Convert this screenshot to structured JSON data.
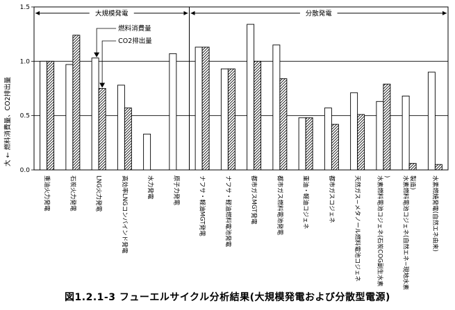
{
  "caption": "図1.2.1-3 フューエルサイクル分析結果(大規模発電および分散型電源)",
  "chart_data": {
    "type": "bar",
    "ylabel": "大 ← 燃料消費量、CO2排出量",
    "ylim": [
      0,
      1.5
    ],
    "yticks": [
      "0.0",
      "0.5",
      "1.0",
      "1.5"
    ],
    "grid": true,
    "sections": [
      {
        "label": "大規模発電",
        "from": 0,
        "to": 6
      },
      {
        "label": "分散発電",
        "from": 6,
        "to": 16
      }
    ],
    "legend": [
      {
        "label": "燃料消費量"
      },
      {
        "label": "CO2排出量"
      }
    ],
    "categories": [
      "重油火力発電",
      "石炭火力発電",
      "LNG火力発電",
      "高効率LNGコンバインド発電",
      "水力発電",
      "原子力発電",
      "ナフサ・軽油MGT発電",
      "ナフサ・軽油燃料電池発電",
      "都市ガスMGT発電",
      "都市ガス燃料電池発電",
      "重油・軽油コジェネ",
      "都市ガスコジェネ",
      "天然ガス−メタノール燃料電池コジェネ",
      "水素燃料電池コジェネ(石炭COG副生水素)",
      "水素燃料電池コジェネ(自然エネ−現地水素製造)",
      "水素燃焼発電(自然エネ由来)"
    ],
    "series": [
      {
        "name": "燃料消費量",
        "values": [
          1.0,
          0.97,
          1.03,
          0.78,
          0.33,
          1.07,
          1.13,
          0.93,
          1.34,
          1.15,
          0.48,
          0.57,
          0.71,
          0.63,
          0.68,
          0.9
        ]
      },
      {
        "name": "CO2排出量",
        "values": [
          1.0,
          1.24,
          0.75,
          0.57,
          0.0,
          0.0,
          1.13,
          0.93,
          1.0,
          0.84,
          0.48,
          0.42,
          0.51,
          0.79,
          0.06,
          0.05
        ]
      }
    ]
  }
}
